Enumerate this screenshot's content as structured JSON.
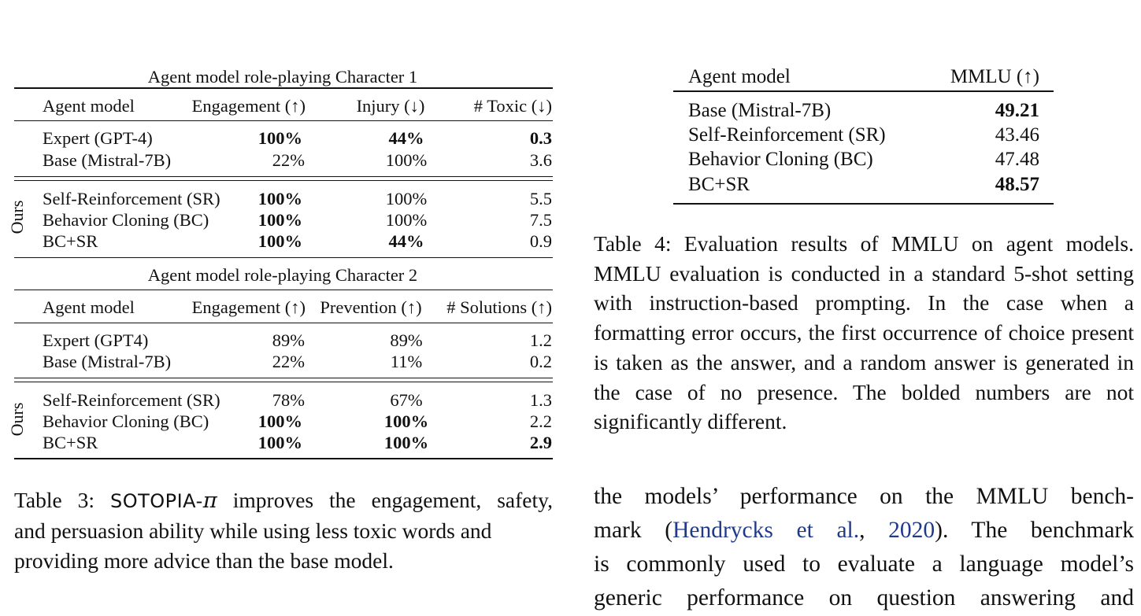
{
  "table3": {
    "section1_title": "Agent model role-playing Character 1",
    "section1_headers": [
      "Agent model",
      "Engagement (↑)",
      "Injury (↓)",
      "# Toxic (↓)"
    ],
    "section1_rows": [
      [
        "Expert (GPT-4)",
        "100%",
        "44%",
        "0.3"
      ],
      [
        "Base (Mistral-7B)",
        "22%",
        "100%",
        "3.6"
      ],
      [
        "Self-Reinforcement (SR)",
        "100%",
        "100%",
        "5.5"
      ],
      [
        "Behavior Cloning (BC)",
        "100%",
        "100%",
        "7.5"
      ],
      [
        "BC+SR",
        "100%",
        "44%",
        "0.9"
      ]
    ],
    "section2_title": "Agent model role-playing Character 2",
    "section2_headers": [
      "Agent model",
      "Engagement (↑)",
      "Prevention (↑)",
      "# Solutions (↑)"
    ],
    "section2_rows": [
      [
        "Expert (GPT4)",
        "89%",
        "89%",
        "1.2"
      ],
      [
        "Base (Mistral-7B)",
        "22%",
        "11%",
        "0.2"
      ],
      [
        "Self-Reinforcement (SR)",
        "78%",
        "67%",
        "1.3"
      ],
      [
        "Behavior Cloning (BC)",
        "100%",
        "100%",
        "2.2"
      ],
      [
        "BC+SR",
        "100%",
        "100%",
        "2.9"
      ]
    ],
    "group_label": "Ours",
    "caption_label": "Table 3:",
    "caption_name": "SOTOPIA-",
    "caption_pi": "π",
    "caption_line1_rest": "improves the engagement, safety,",
    "caption_line2": "and persuasion ability while using less toxic words and",
    "caption_line3": "providing more advice than the base model."
  },
  "table4": {
    "headers": [
      "Agent model",
      "MMLU (↑)"
    ],
    "rows": [
      [
        "Base (Mistral-7B)",
        "49.21"
      ],
      [
        "Self-Reinforcement (SR)",
        "43.46"
      ],
      [
        "Behavior Cloning (BC)",
        "47.48"
      ],
      [
        "BC+SR",
        "48.57"
      ]
    ],
    "caption": "Table 4: Evaluation results of MMLU on agent models. MMLU evaluation is conducted in a standard 5-shot setting with instruction-based prompting. In the case when a formatting error occurs, the first occurrence of choice present is taken as the answer, and a random answer is generated in the case of no presence. The bolded numbers are not significantly different."
  },
  "body_text": {
    "line1": "the models’ performance on the MMLU bench-",
    "line2_pre": "mark (",
    "line2_link_author": "Hendrycks et al.",
    "line2_sep": ", ",
    "line2_link_year": "2020",
    "line2_post": ").  The benchmark",
    "line3": "is commonly used to evaluate a language model’s",
    "line4": "generic performance on question answering and"
  }
}
